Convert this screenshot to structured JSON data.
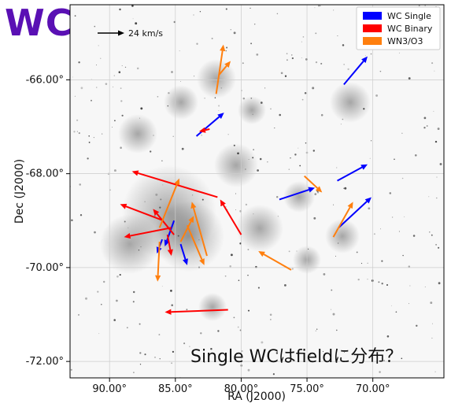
{
  "big_title": "WC",
  "chart_data": {
    "type": "scatter",
    "title": "",
    "xlabel": "RA (J2000)",
    "ylabel": "Dec (J2000)",
    "xlim": [
      93.0,
      64.6
    ],
    "ylim": [
      -72.35,
      -64.4
    ],
    "x_ticks": [
      90,
      85,
      80,
      75,
      70
    ],
    "x_tick_labels": [
      "90.00°",
      "85.00°",
      "80.00°",
      "75.00°",
      "70.00°"
    ],
    "y_ticks": [
      -66,
      -68,
      -70,
      -72
    ],
    "y_tick_labels": [
      "-66.00°",
      "-68.00°",
      "-70.00°",
      "-72.00°"
    ],
    "grid": true,
    "legend_position": "top-right",
    "legend": [
      {
        "label": "WC Single",
        "color": "#0000ff"
      },
      {
        "label": "WC Binary",
        "color": "#ff0000"
      },
      {
        "label": "WN3/O3",
        "color": "#ff7f0e"
      }
    ],
    "scale_bar_label": "24 km/s",
    "annotation": "Single WCはfieldに分布？",
    "series": [
      {
        "name": "WC Single",
        "color": "#0000ff",
        "arrows": [
          {
            "ra": 83.4,
            "dec": -67.2,
            "dra": -2.1,
            "ddec": 0.5
          },
          {
            "ra": 72.2,
            "dec": -66.1,
            "dra": -1.8,
            "ddec": 0.6
          },
          {
            "ra": 77.1,
            "dec": -68.55,
            "dra": -2.7,
            "ddec": 0.25
          },
          {
            "ra": 72.7,
            "dec": -68.15,
            "dra": -2.3,
            "ddec": 0.35
          },
          {
            "ra": 72.6,
            "dec": -69.15,
            "dra": -2.5,
            "ddec": 0.65
          },
          {
            "ra": 86.0,
            "dec": -69.4,
            "dra": 0.4,
            "ddec": -0.3
          },
          {
            "ra": 85.1,
            "dec": -69.0,
            "dra": 0.7,
            "ddec": -0.55
          },
          {
            "ra": 84.6,
            "dec": -69.5,
            "dra": -0.5,
            "ddec": -0.45
          }
        ]
      },
      {
        "name": "WC Binary",
        "color": "#ff0000",
        "arrows": [
          {
            "ra": 82.4,
            "dec": -67.05,
            "dra": 0.8,
            "ddec": -0.05
          },
          {
            "ra": 81.8,
            "dec": -68.5,
            "dra": 6.5,
            "ddec": 0.55
          },
          {
            "ra": 85.9,
            "dec": -69.0,
            "dra": 3.3,
            "ddec": 0.35
          },
          {
            "ra": 85.3,
            "dec": -69.15,
            "dra": 3.6,
            "ddec": -0.2
          },
          {
            "ra": 85.1,
            "dec": -69.3,
            "dra": 1.6,
            "ddec": 0.55
          },
          {
            "ra": 85.6,
            "dec": -69.3,
            "dra": -0.3,
            "ddec": -0.45
          },
          {
            "ra": 80.0,
            "dec": -69.3,
            "dra": 1.6,
            "ddec": 0.75
          },
          {
            "ra": 81.0,
            "dec": -70.9,
            "dra": 4.8,
            "ddec": -0.05
          }
        ]
      },
      {
        "name": "WN3/O3",
        "color": "#ff7f0e",
        "arrows": [
          {
            "ra": 81.9,
            "dec": -66.3,
            "dra": -0.55,
            "ddec": 1.05
          },
          {
            "ra": 81.7,
            "dec": -65.9,
            "dra": -0.9,
            "ddec": 0.3
          },
          {
            "ra": 86.2,
            "dec": -69.15,
            "dra": -1.5,
            "ddec": 1.05
          },
          {
            "ra": 86.2,
            "dec": -69.45,
            "dra": 0.15,
            "ddec": -0.85
          },
          {
            "ra": 84.6,
            "dec": -69.45,
            "dra": -1.0,
            "ddec": 0.55
          },
          {
            "ra": 84.1,
            "dec": -69.1,
            "dra": -1.3,
            "ddec": -0.85
          },
          {
            "ra": 82.6,
            "dec": -69.75,
            "dra": 1.15,
            "ddec": 1.15
          },
          {
            "ra": 76.2,
            "dec": -70.05,
            "dra": 2.5,
            "ddec": 0.4
          },
          {
            "ra": 75.2,
            "dec": -68.05,
            "dra": -1.35,
            "ddec": -0.35
          },
          {
            "ra": 73.0,
            "dec": -69.35,
            "dra": -1.5,
            "ddec": 0.75
          }
        ]
      }
    ]
  }
}
